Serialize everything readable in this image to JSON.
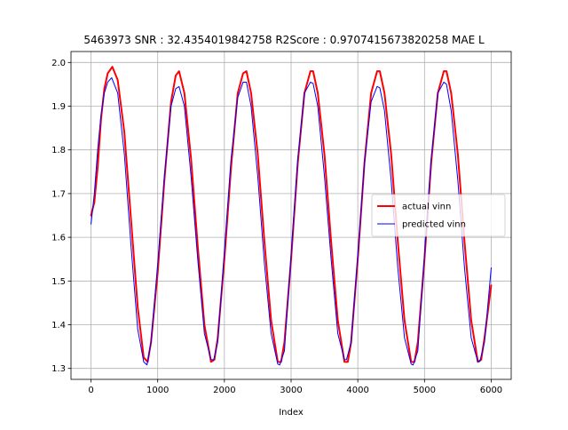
{
  "chart_data": {
    "type": "line",
    "title": "5463973  SNR : 32.4354019842758 R2Score : 0.9707415673820258 MAE L",
    "xlabel": "Index",
    "ylabel": "",
    "xlim": [
      -300,
      6300
    ],
    "ylim": [
      1.275,
      2.025
    ],
    "x_ticks": [
      0,
      1000,
      2000,
      3000,
      4000,
      5000,
      6000
    ],
    "y_ticks": [
      1.3,
      1.4,
      1.5,
      1.6,
      1.7,
      1.8,
      1.9,
      2.0
    ],
    "x_tick_labels": [
      "0",
      "1000",
      "2000",
      "3000",
      "4000",
      "5000",
      "6000"
    ],
    "y_tick_labels": [
      "1.3",
      "1.4",
      "1.5",
      "1.6",
      "1.7",
      "1.8",
      "1.9",
      "2.0"
    ],
    "grid": true,
    "legend_position": "center-right",
    "series": [
      {
        "name": "actual vinn",
        "color": "#ff0000",
        "x": [
          0,
          50,
          100,
          150,
          200,
          250,
          320,
          400,
          500,
          600,
          700,
          790,
          850,
          900,
          1000,
          1100,
          1200,
          1270,
          1320,
          1400,
          1500,
          1600,
          1700,
          1800,
          1850,
          1900,
          2000,
          2100,
          2200,
          2280,
          2330,
          2400,
          2500,
          2600,
          2700,
          2800,
          2850,
          2900,
          3000,
          3100,
          3200,
          3290,
          3330,
          3400,
          3500,
          3600,
          3700,
          3800,
          3850,
          3900,
          4000,
          4100,
          4200,
          4290,
          4330,
          4400,
          4500,
          4600,
          4700,
          4800,
          4850,
          4900,
          5000,
          5100,
          5200,
          5290,
          5330,
          5400,
          5500,
          5600,
          5700,
          5800,
          5850,
          5900,
          6000
        ],
        "y": [
          1.65,
          1.68,
          1.76,
          1.87,
          1.94,
          1.975,
          1.99,
          1.96,
          1.84,
          1.64,
          1.44,
          1.325,
          1.315,
          1.36,
          1.52,
          1.73,
          1.91,
          1.97,
          1.98,
          1.93,
          1.78,
          1.58,
          1.4,
          1.315,
          1.32,
          1.37,
          1.55,
          1.76,
          1.93,
          1.975,
          1.98,
          1.93,
          1.79,
          1.59,
          1.41,
          1.315,
          1.315,
          1.36,
          1.55,
          1.77,
          1.93,
          1.98,
          1.98,
          1.93,
          1.79,
          1.59,
          1.41,
          1.315,
          1.315,
          1.36,
          1.55,
          1.77,
          1.93,
          1.98,
          1.98,
          1.93,
          1.79,
          1.59,
          1.41,
          1.315,
          1.315,
          1.36,
          1.55,
          1.77,
          1.93,
          1.98,
          1.98,
          1.93,
          1.79,
          1.59,
          1.41,
          1.315,
          1.32,
          1.37,
          1.49
        ]
      },
      {
        "name": "predicted vinn",
        "color": "#0000ff",
        "x": [
          0,
          50,
          100,
          150,
          200,
          250,
          310,
          400,
          500,
          600,
          700,
          790,
          840,
          900,
          1000,
          1100,
          1200,
          1270,
          1320,
          1400,
          1500,
          1600,
          1700,
          1800,
          1840,
          1900,
          2000,
          2100,
          2200,
          2280,
          2330,
          2400,
          2500,
          2600,
          2700,
          2800,
          2830,
          2900,
          3000,
          3100,
          3200,
          3290,
          3330,
          3400,
          3500,
          3600,
          3700,
          3800,
          3830,
          3900,
          4000,
          4100,
          4200,
          4290,
          4330,
          4400,
          4500,
          4600,
          4700,
          4800,
          4830,
          4900,
          5000,
          5100,
          5200,
          5290,
          5330,
          5400,
          5500,
          5600,
          5700,
          5800,
          5830,
          5900,
          6000
        ],
        "y": [
          1.63,
          1.7,
          1.8,
          1.88,
          1.93,
          1.955,
          1.965,
          1.93,
          1.79,
          1.58,
          1.39,
          1.315,
          1.308,
          1.36,
          1.54,
          1.74,
          1.9,
          1.94,
          1.945,
          1.9,
          1.74,
          1.55,
          1.38,
          1.32,
          1.32,
          1.36,
          1.57,
          1.78,
          1.92,
          1.955,
          1.955,
          1.9,
          1.74,
          1.54,
          1.38,
          1.31,
          1.308,
          1.34,
          1.56,
          1.78,
          1.93,
          1.955,
          1.952,
          1.9,
          1.74,
          1.55,
          1.38,
          1.32,
          1.32,
          1.36,
          1.56,
          1.77,
          1.91,
          1.945,
          1.942,
          1.89,
          1.73,
          1.53,
          1.37,
          1.31,
          1.308,
          1.34,
          1.56,
          1.78,
          1.93,
          1.955,
          1.95,
          1.89,
          1.73,
          1.53,
          1.37,
          1.315,
          1.316,
          1.36,
          1.53
        ]
      }
    ]
  }
}
